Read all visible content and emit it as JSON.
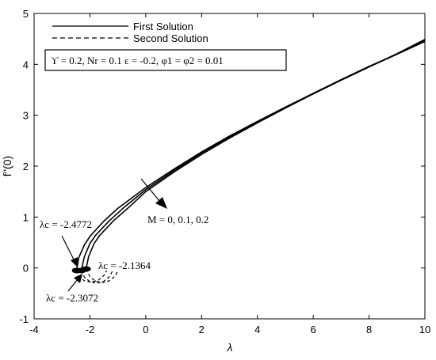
{
  "chart_data": {
    "type": "line",
    "xlabel": "λ",
    "ylabel": "f''(0)",
    "xlim": [
      -4,
      10
    ],
    "ylim": [
      -1,
      5
    ],
    "xticks": [
      "-4",
      "-2",
      "0",
      "2",
      "4",
      "6",
      "8",
      "10"
    ],
    "yticks": [
      "-1",
      "0",
      "1",
      "2",
      "3",
      "4",
      "5"
    ],
    "grid": false,
    "legend": {
      "placement": "top-left",
      "entries": [
        {
          "label": "First Solution",
          "style": "solid"
        },
        {
          "label": "Second Solution",
          "style": "dashed"
        }
      ]
    },
    "parameter_box": "ϒ = 0.2, Nr = 0.1 ε = -0.2, φ1 = φ2 = 0.01",
    "parameter_label": "M = 0, 0.1, 0.2",
    "series": [
      {
        "M": 0,
        "lambda_c": -2.4772,
        "first": [
          [
            -2.4772,
            -0.05
          ],
          [
            -2.4,
            0.2
          ],
          [
            -2.2,
            0.45
          ],
          [
            -2.0,
            0.62
          ],
          [
            -1.5,
            0.92
          ],
          [
            -1.0,
            1.17
          ],
          [
            0,
            1.58
          ],
          [
            1,
            1.94
          ],
          [
            2,
            2.28
          ],
          [
            3,
            2.59
          ],
          [
            4,
            2.88
          ],
          [
            5,
            3.16
          ],
          [
            6,
            3.43
          ],
          [
            7,
            3.7
          ],
          [
            8,
            3.96
          ],
          [
            9,
            4.2
          ],
          [
            10,
            4.45
          ]
        ],
        "second": [
          [
            -2.4772,
            -0.05
          ],
          [
            -2.4,
            -0.17
          ],
          [
            -2.2,
            -0.25
          ],
          [
            -1.95,
            -0.28
          ],
          [
            -1.7,
            -0.24
          ],
          [
            -1.5,
            -0.15
          ],
          [
            -1.4,
            -0.05
          ]
        ]
      },
      {
        "M": 0.1,
        "lambda_c": -2.3072,
        "first": [
          [
            -2.3072,
            -0.05
          ],
          [
            -2.2,
            0.22
          ],
          [
            -2.0,
            0.48
          ],
          [
            -1.8,
            0.64
          ],
          [
            -1.3,
            0.93
          ],
          [
            -0.8,
            1.18
          ],
          [
            0,
            1.54
          ],
          [
            1,
            1.91
          ],
          [
            2,
            2.26
          ],
          [
            3,
            2.57
          ],
          [
            4,
            2.87
          ],
          [
            5,
            3.15
          ],
          [
            6,
            3.42
          ],
          [
            7,
            3.69
          ],
          [
            8,
            3.95
          ],
          [
            9,
            4.2
          ],
          [
            10,
            4.47
          ]
        ],
        "second": [
          [
            -2.3072,
            -0.05
          ],
          [
            -2.2,
            -0.18
          ],
          [
            -2.0,
            -0.27
          ],
          [
            -1.75,
            -0.3
          ],
          [
            -1.5,
            -0.26
          ],
          [
            -1.3,
            -0.17
          ],
          [
            -1.2,
            -0.07
          ]
        ]
      },
      {
        "M": 0.2,
        "lambda_c": -2.1364,
        "first": [
          [
            -2.1364,
            -0.02
          ],
          [
            -2.05,
            0.22
          ],
          [
            -1.85,
            0.48
          ],
          [
            -1.65,
            0.64
          ],
          [
            -1.15,
            0.93
          ],
          [
            -0.65,
            1.17
          ],
          [
            0,
            1.5
          ],
          [
            1,
            1.88
          ],
          [
            2,
            2.23
          ],
          [
            3,
            2.55
          ],
          [
            4,
            2.85
          ],
          [
            5,
            3.14
          ],
          [
            6,
            3.42
          ],
          [
            7,
            3.69
          ],
          [
            8,
            3.95
          ],
          [
            9,
            4.21
          ],
          [
            10,
            4.49
          ]
        ],
        "second": [
          [
            -2.1364,
            -0.02
          ],
          [
            -2.0,
            -0.17
          ],
          [
            -1.8,
            -0.26
          ],
          [
            -1.55,
            -0.29
          ],
          [
            -1.3,
            -0.25
          ],
          [
            -1.1,
            -0.16
          ],
          [
            -1.0,
            -0.06
          ]
        ]
      }
    ],
    "annotations": [
      {
        "text": "λc = -2.4772",
        "point": [
          -2.4772,
          -0.05
        ]
      },
      {
        "text": "λc = -2.1364",
        "point": [
          -2.1364,
          -0.02
        ]
      },
      {
        "text": "λc = -2.3072",
        "point": [
          -2.3072,
          -0.05
        ]
      }
    ]
  }
}
